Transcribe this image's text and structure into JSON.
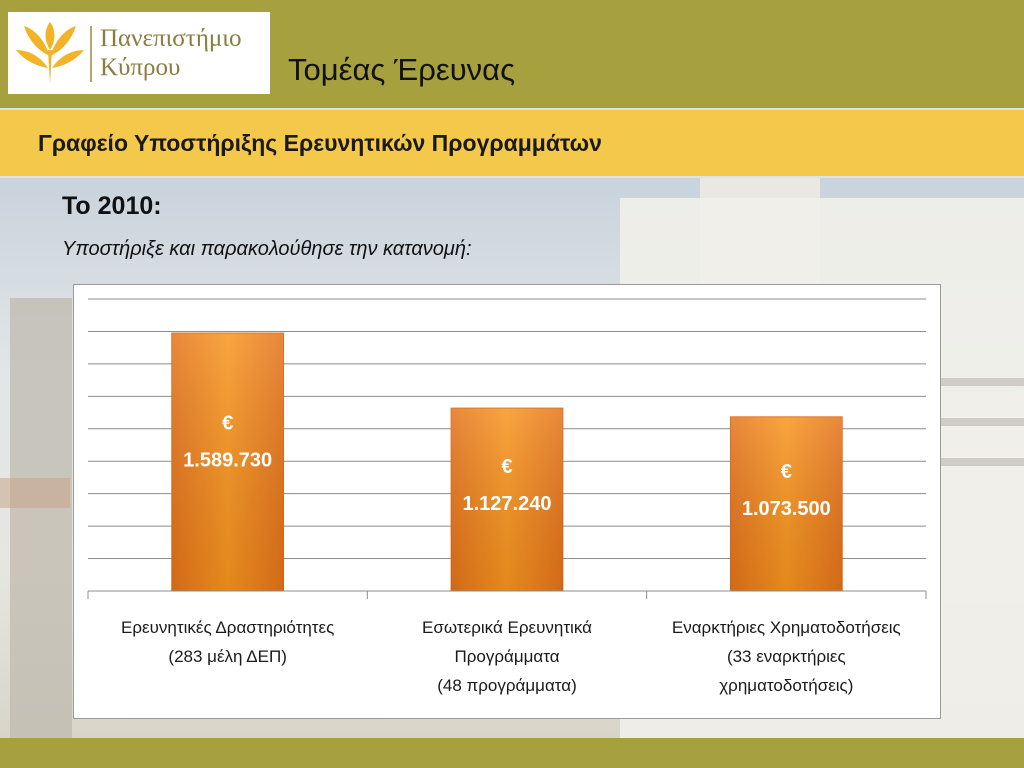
{
  "header": {
    "logo_line1": "Πανεπιστήμιο",
    "logo_line2": "Κύπρου",
    "title": "Τομέας Έρευνας"
  },
  "subheader": {
    "title": "Γραφείο Υποστήριξης Ερευνητικών Προγραμμάτων"
  },
  "content": {
    "year_heading": "Το 2010:",
    "intro": "Υποστήριξε και παρακολούθησε την κατανομή:"
  },
  "colors": {
    "header_bg": "#a6a03e",
    "subheader_bg": "#f4c84a",
    "bar_fill": "#f0841e"
  },
  "chart_data": {
    "type": "bar",
    "title": "",
    "xlabel": "",
    "ylabel": "",
    "ylim": [
      0,
      1800000
    ],
    "grid": true,
    "legend": "none",
    "categories": [
      [
        "Ερευνητικές Δραστηριότητες",
        "(283 μέλη ΔΕΠ)"
      ],
      [
        "Εσωτερικά Ερευνητικά",
        "Προγράμματα",
        "(48 προγράμματα)"
      ],
      [
        "Εναρκτήριες Χρηματοδοτήσεις",
        "(33 εναρκτήριες",
        "χρηματοδοτήσεις)"
      ]
    ],
    "values": [
      1589730,
      1127240,
      1073500
    ],
    "data_labels": [
      [
        "€",
        "1.589.730"
      ],
      [
        "€",
        "1.127.240"
      ],
      [
        "€",
        "1.073.500"
      ]
    ]
  }
}
